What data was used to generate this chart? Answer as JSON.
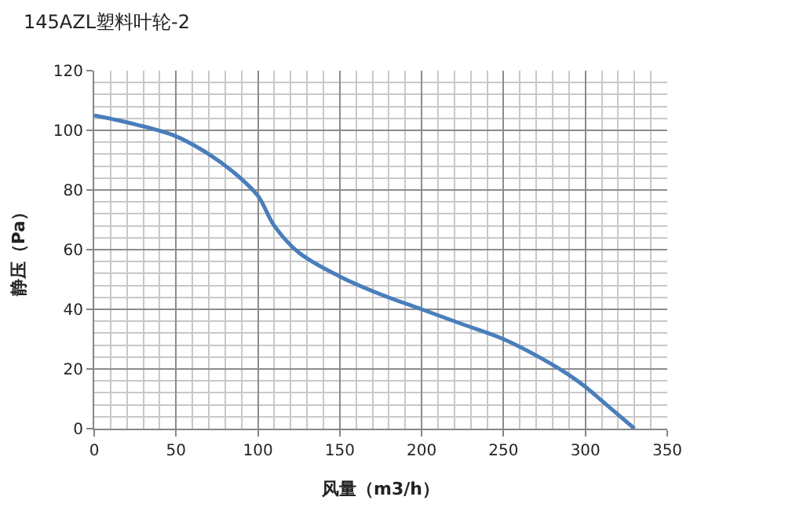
{
  "chart_data": {
    "type": "line",
    "title": "145AZL塑料叶轮-2",
    "xlabel": "风量（m3/h）",
    "ylabel": "静压（Pa）",
    "x": [
      0,
      25,
      50,
      70,
      85,
      100,
      110,
      125,
      150,
      175,
      200,
      225,
      250,
      275,
      290,
      300,
      315,
      330
    ],
    "series": [
      {
        "color": "#4a7ebb",
        "values": [
          105,
          102,
          98,
          92,
          86,
          78,
          68,
          59,
          51,
          45,
          40,
          35,
          30,
          23,
          18,
          14,
          7,
          0
        ]
      }
    ],
    "xlim": [
      0,
      350
    ],
    "xticks": [
      0,
      50,
      100,
      150,
      200,
      250,
      300,
      350
    ],
    "ylim": [
      0,
      120
    ],
    "yticks": [
      0,
      20,
      40,
      60,
      80,
      100,
      120
    ],
    "grid": true,
    "marker": "none",
    "line_style": "solid"
  }
}
